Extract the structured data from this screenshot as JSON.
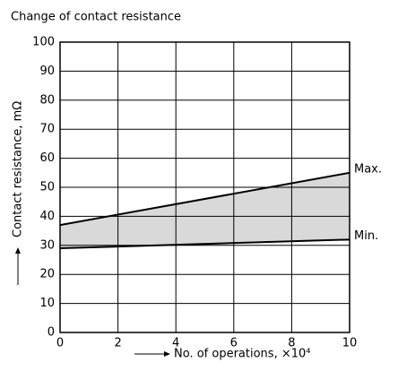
{
  "chart_data": {
    "type": "line",
    "title": "Change of contact resistance",
    "x_label": "No. of operations, ×10⁴",
    "y_label": "Contact resistance, mΩ",
    "x": [
      0,
      10
    ],
    "series": [
      {
        "name": "Max.",
        "color": "#000000",
        "values": [
          37,
          55
        ]
      },
      {
        "name": "Min.",
        "color": "#000000",
        "values": [
          29,
          32
        ]
      }
    ],
    "fill_between": "#d9d9d9",
    "xlim": [
      0,
      10
    ],
    "xticks": [
      0,
      2,
      4,
      6,
      8,
      10
    ],
    "ylim": [
      0,
      100
    ],
    "yticks": [
      0,
      10,
      20,
      30,
      40,
      50,
      60,
      70,
      80,
      90,
      100
    ],
    "grid": true
  }
}
